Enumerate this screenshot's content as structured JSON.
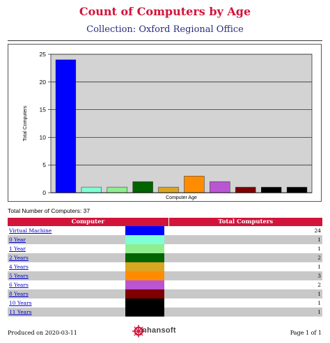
{
  "report": {
    "title": "Count of Computers by Age",
    "subtitle": "Collection: Oxford Regional Office",
    "total_line": "Total Number of Computers: 37",
    "produced_on": "Produced on 2020-03-11",
    "page_info": "Page 1 of 1",
    "brand": "nhansoft"
  },
  "chart_data": {
    "type": "bar",
    "categories": [
      "Virtual Machine",
      "0 Year",
      "1 Year",
      "2 Years",
      "4 Years",
      "5 Years",
      "6 Years",
      "8 Years",
      "10 Years",
      "11 Years"
    ],
    "values": [
      24,
      1,
      1,
      2,
      1,
      3,
      2,
      1,
      1,
      1
    ],
    "colors": [
      "#0000ff",
      "#7fffd4",
      "#90ee90",
      "#006400",
      "#daa520",
      "#ff8c00",
      "#ba55d3",
      "#800000",
      "#000000",
      "#000000"
    ],
    "xlabel": "Computer Age",
    "ylabel": "Total Computers",
    "ylim": [
      0,
      25
    ],
    "yticks": [
      0,
      5,
      10,
      15,
      20,
      25
    ],
    "grid": true,
    "plot_background": "#d3d3d3"
  },
  "table": {
    "headers": [
      "Computer",
      "Total Computers"
    ],
    "rows": [
      {
        "label": "Virtual Machine",
        "color": "#0000ff",
        "count": "24"
      },
      {
        "label": "0 Year",
        "color": "#7fffd4",
        "count": "1"
      },
      {
        "label": "1 Year",
        "color": "#90ee90",
        "count": "1"
      },
      {
        "label": "2 Years",
        "color": "#006400",
        "count": "2"
      },
      {
        "label": "4 Years",
        "color": "#daa520",
        "count": "1"
      },
      {
        "label": "5 Years",
        "color": "#ff8c00",
        "count": "3"
      },
      {
        "label": "6 Years",
        "color": "#ba55d3",
        "count": "2"
      },
      {
        "label": "8 Years",
        "color": "#800000",
        "count": "1"
      },
      {
        "label": "10 Years",
        "color": "#000000",
        "count": "1"
      },
      {
        "label": "11 Years",
        "color": "#000000",
        "count": "1"
      }
    ]
  },
  "colors": {
    "accent": "#d2143a",
    "subtitle": "#2b2b7f",
    "link": "#0000cc",
    "row_alt": "#c8c8c8"
  }
}
